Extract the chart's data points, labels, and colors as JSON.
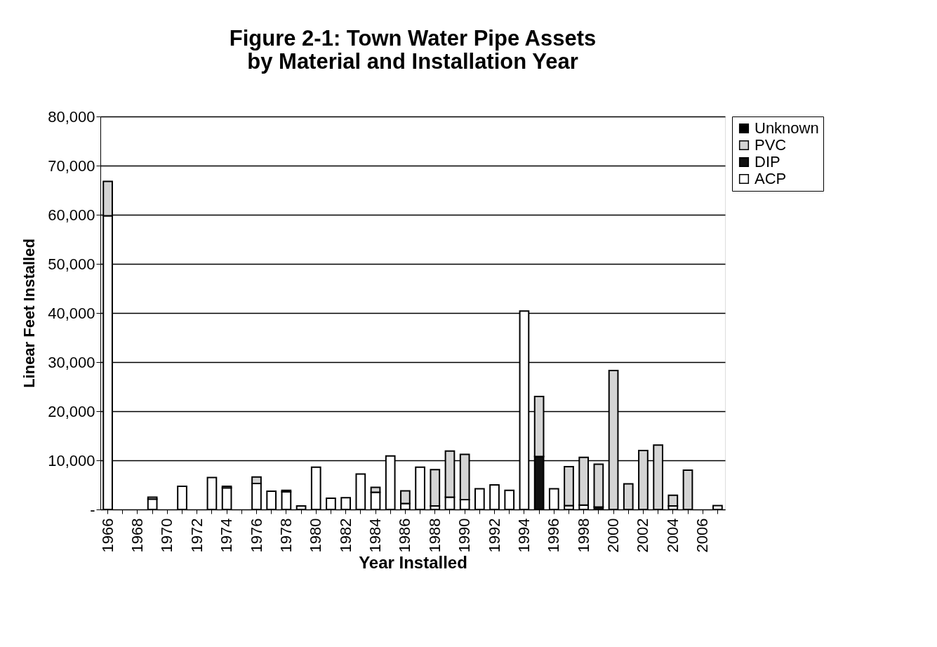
{
  "chart_data": {
    "type": "bar",
    "title": [
      "Figure 2-1: Town Water Pipe Assets",
      "by Material and Installation Year"
    ],
    "xlabel": "Year Installed",
    "ylabel": "Linear Feet Installed",
    "categories": [
      "1966",
      null,
      "1968",
      null,
      "1970",
      null,
      "1972",
      null,
      "1974",
      null,
      "1976",
      null,
      "1978",
      null,
      "1980",
      null,
      "1982",
      null,
      "1984",
      null,
      "1986",
      null,
      "1988",
      null,
      "1990",
      null,
      "1992",
      null,
      "1994",
      null,
      "1996",
      null,
      "1998",
      null,
      "2000",
      null,
      "2002",
      null,
      "2004",
      null,
      "2006",
      null
    ],
    "stacked": true,
    "series": [
      {
        "name": "ACP",
        "color": "#ffffff",
        "values": [
          59800,
          0,
          0,
          2100,
          0,
          4700,
          0,
          6500,
          4400,
          0,
          5300,
          3700,
          3600,
          700,
          8600,
          2300,
          2400,
          7200,
          3500,
          10900,
          1200,
          8600,
          700,
          2500,
          2000,
          4200,
          5000,
          3900,
          40400,
          0,
          4200,
          800,
          900,
          0,
          0,
          0,
          0,
          0,
          700,
          0,
          0,
          800
        ]
      },
      {
        "name": "DIP",
        "color": "#111111",
        "values": [
          0,
          0,
          0,
          0,
          0,
          0,
          0,
          0,
          0,
          0,
          0,
          0,
          0,
          0,
          0,
          0,
          0,
          0,
          0,
          0,
          0,
          0,
          0,
          0,
          0,
          0,
          0,
          0,
          0,
          10800,
          0,
          0,
          0,
          500,
          0,
          0,
          0,
          0,
          0,
          0,
          0,
          0
        ]
      },
      {
        "name": "PVC",
        "color": "#d4d4d4",
        "values": [
          7000,
          0,
          0,
          400,
          0,
          0,
          0,
          0,
          300,
          0,
          1300,
          0,
          300,
          0,
          0,
          0,
          0,
          0,
          1000,
          0,
          2600,
          0,
          7400,
          9400,
          9200,
          0,
          0,
          0,
          0,
          12200,
          0,
          7900,
          9700,
          8700,
          28300,
          5200,
          12000,
          13100,
          2200,
          8000,
          0,
          0
        ]
      },
      {
        "name": "Unknown",
        "color": "#000000",
        "values": [
          null,
          null,
          null,
          null,
          null,
          null,
          null,
          null,
          null,
          null,
          null,
          null,
          null,
          null,
          null,
          null,
          null,
          null,
          null,
          null,
          null,
          null,
          null,
          null,
          null,
          null,
          null,
          null,
          null,
          null,
          null,
          null,
          null,
          null,
          null,
          null,
          null,
          null,
          null,
          null,
          null,
          null
        ]
      }
    ],
    "ylim": [
      0,
      80000
    ],
    "yticks": [
      {
        "value": 0,
        "label": "-"
      },
      {
        "value": 10000,
        "label": "10,000"
      },
      {
        "value": 20000,
        "label": "20,000"
      },
      {
        "value": 30000,
        "label": "30,000"
      },
      {
        "value": 40000,
        "label": "40,000"
      },
      {
        "value": 50000,
        "label": "50,000"
      },
      {
        "value": 60000,
        "label": "60,000"
      },
      {
        "value": 70000,
        "label": "70,000"
      },
      {
        "value": 80000,
        "label": "80,000"
      }
    ],
    "grid": "y",
    "legend": "right"
  }
}
